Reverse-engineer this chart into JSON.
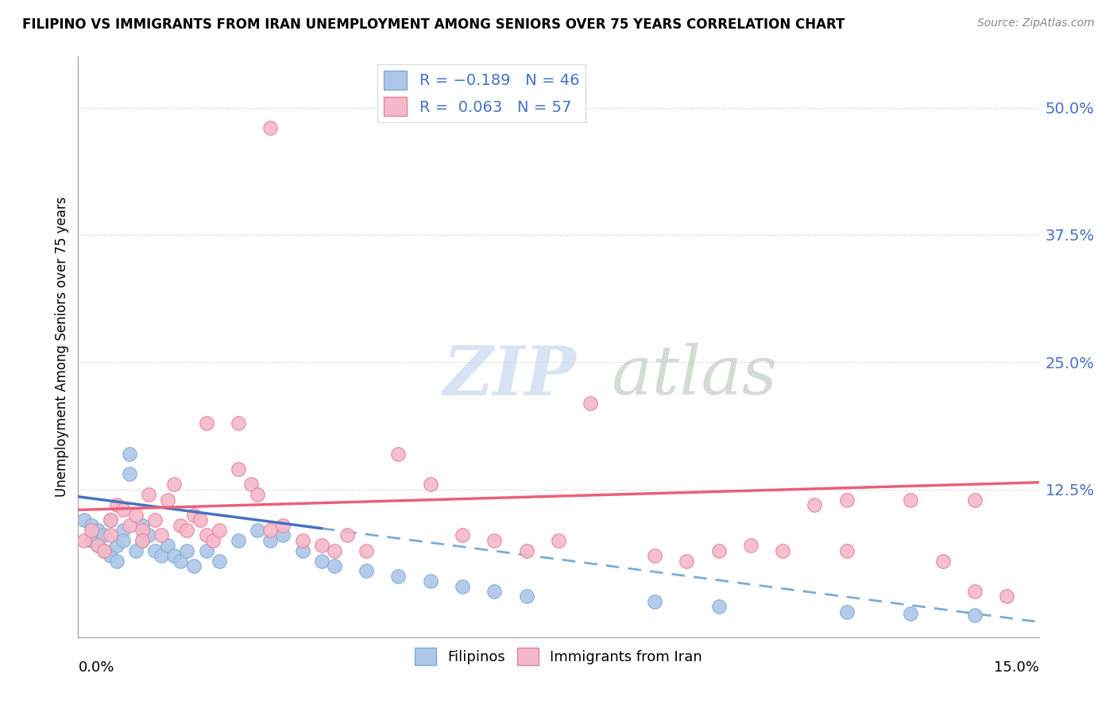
{
  "title": "FILIPINO VS IMMIGRANTS FROM IRAN UNEMPLOYMENT AMONG SENIORS OVER 75 YEARS CORRELATION CHART",
  "source": "Source: ZipAtlas.com",
  "ylabel": "Unemployment Among Seniors over 75 years",
  "ytick_vals": [
    0.5,
    0.375,
    0.25,
    0.125
  ],
  "ytick_labels": [
    "50.0%",
    "37.5%",
    "25.0%",
    "12.5%"
  ],
  "xlim": [
    0.0,
    0.15
  ],
  "ylim": [
    -0.02,
    0.55
  ],
  "watermark_zip": "ZIP",
  "watermark_atlas": "atlas",
  "blue_scatter": [
    [
      0.001,
      0.095
    ],
    [
      0.002,
      0.09
    ],
    [
      0.002,
      0.075
    ],
    [
      0.003,
      0.085
    ],
    [
      0.003,
      0.07
    ],
    [
      0.004,
      0.065
    ],
    [
      0.004,
      0.08
    ],
    [
      0.005,
      0.095
    ],
    [
      0.005,
      0.06
    ],
    [
      0.006,
      0.055
    ],
    [
      0.006,
      0.07
    ],
    [
      0.007,
      0.085
    ],
    [
      0.007,
      0.075
    ],
    [
      0.008,
      0.16
    ],
    [
      0.008,
      0.14
    ],
    [
      0.009,
      0.065
    ],
    [
      0.01,
      0.075
    ],
    [
      0.01,
      0.09
    ],
    [
      0.011,
      0.08
    ],
    [
      0.012,
      0.065
    ],
    [
      0.013,
      0.06
    ],
    [
      0.014,
      0.07
    ],
    [
      0.015,
      0.06
    ],
    [
      0.016,
      0.055
    ],
    [
      0.017,
      0.065
    ],
    [
      0.018,
      0.05
    ],
    [
      0.02,
      0.065
    ],
    [
      0.022,
      0.055
    ],
    [
      0.025,
      0.075
    ],
    [
      0.028,
      0.085
    ],
    [
      0.03,
      0.075
    ],
    [
      0.032,
      0.08
    ],
    [
      0.035,
      0.065
    ],
    [
      0.038,
      0.055
    ],
    [
      0.04,
      0.05
    ],
    [
      0.045,
      0.045
    ],
    [
      0.05,
      0.04
    ],
    [
      0.055,
      0.035
    ],
    [
      0.06,
      0.03
    ],
    [
      0.065,
      0.025
    ],
    [
      0.07,
      0.02
    ],
    [
      0.09,
      0.015
    ],
    [
      0.1,
      0.01
    ],
    [
      0.12,
      0.005
    ],
    [
      0.13,
      0.003
    ],
    [
      0.14,
      0.002
    ]
  ],
  "pink_scatter": [
    [
      0.001,
      0.075
    ],
    [
      0.002,
      0.085
    ],
    [
      0.003,
      0.07
    ],
    [
      0.004,
      0.065
    ],
    [
      0.005,
      0.08
    ],
    [
      0.005,
      0.095
    ],
    [
      0.006,
      0.11
    ],
    [
      0.007,
      0.105
    ],
    [
      0.008,
      0.09
    ],
    [
      0.009,
      0.1
    ],
    [
      0.01,
      0.085
    ],
    [
      0.01,
      0.075
    ],
    [
      0.011,
      0.12
    ],
    [
      0.012,
      0.095
    ],
    [
      0.013,
      0.08
    ],
    [
      0.014,
      0.115
    ],
    [
      0.015,
      0.13
    ],
    [
      0.016,
      0.09
    ],
    [
      0.017,
      0.085
    ],
    [
      0.018,
      0.1
    ],
    [
      0.019,
      0.095
    ],
    [
      0.02,
      0.08
    ],
    [
      0.02,
      0.19
    ],
    [
      0.021,
      0.075
    ],
    [
      0.022,
      0.085
    ],
    [
      0.025,
      0.19
    ],
    [
      0.025,
      0.145
    ],
    [
      0.027,
      0.13
    ],
    [
      0.028,
      0.12
    ],
    [
      0.03,
      0.085
    ],
    [
      0.032,
      0.09
    ],
    [
      0.035,
      0.075
    ],
    [
      0.038,
      0.07
    ],
    [
      0.04,
      0.065
    ],
    [
      0.042,
      0.08
    ],
    [
      0.045,
      0.065
    ],
    [
      0.05,
      0.16
    ],
    [
      0.055,
      0.13
    ],
    [
      0.06,
      0.08
    ],
    [
      0.065,
      0.075
    ],
    [
      0.07,
      0.065
    ],
    [
      0.075,
      0.075
    ],
    [
      0.08,
      0.21
    ],
    [
      0.09,
      0.06
    ],
    [
      0.095,
      0.055
    ],
    [
      0.1,
      0.065
    ],
    [
      0.105,
      0.07
    ],
    [
      0.11,
      0.065
    ],
    [
      0.115,
      0.11
    ],
    [
      0.12,
      0.115
    ],
    [
      0.12,
      0.065
    ],
    [
      0.13,
      0.115
    ],
    [
      0.135,
      0.055
    ],
    [
      0.14,
      0.025
    ],
    [
      0.14,
      0.115
    ],
    [
      0.145,
      0.02
    ],
    [
      0.03,
      0.48
    ]
  ],
  "blue_line_start_x": 0.0,
  "blue_line_end_solid_x": 0.038,
  "blue_line_end_dash_x": 0.15,
  "blue_line_y_at_0": 0.118,
  "blue_line_slope": -0.82,
  "pink_line_y_at_0": 0.105,
  "pink_line_slope": 0.18
}
